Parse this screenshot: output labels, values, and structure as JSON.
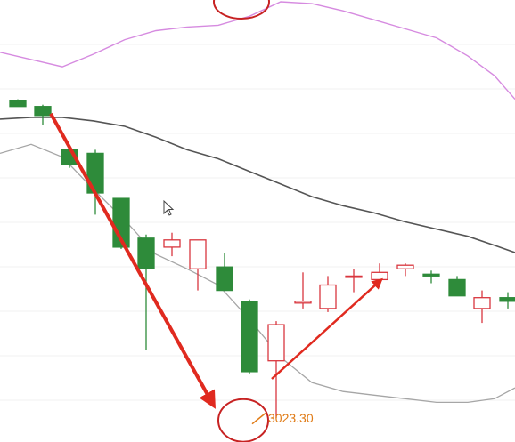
{
  "chart_data": {
    "type": "candlestick",
    "title": "",
    "xlabel": "",
    "ylabel": "",
    "grid": true,
    "price_range": [
      3010,
      3255
    ],
    "low_annotation": {
      "text": "3023.30",
      "value": 3023.3,
      "color": "#e07b16"
    },
    "colors": {
      "up": "#d9363e",
      "down": "#2e8b3a",
      "upper_band": "#d68be0",
      "middle_band": "#555555",
      "lower_band": "#a6a6a6",
      "arrow": "#e02a1f",
      "circle": "#c72222",
      "grid": "#f2f2f2"
    },
    "candles": [
      {
        "open": 3199.0,
        "close": 3196.0,
        "high": 3200.0,
        "low": 3196.0
      },
      {
        "open": 3196.0,
        "close": 3191.0,
        "high": 3197.0,
        "low": 3186.0
      },
      {
        "open": 3172.0,
        "close": 3164.0,
        "high": 3174.0,
        "low": 3162.0
      },
      {
        "open": 3170.0,
        "close": 3148.0,
        "high": 3172.0,
        "low": 3136.0
      },
      {
        "open": 3145.0,
        "close": 3118.0,
        "high": 3145.0,
        "low": 3117.0
      },
      {
        "open": 3123.0,
        "close": 3106.0,
        "high": 3125.0,
        "low": 3061.0
      },
      {
        "open": 3118.0,
        "close": 3122.0,
        "high": 3126.0,
        "low": 3113.0
      },
      {
        "open": 3106.0,
        "close": 3122.0,
        "high": 3122.0,
        "low": 3094.0
      },
      {
        "open": 3107.0,
        "close": 3094.0,
        "high": 3115.0,
        "low": 3094.0
      },
      {
        "open": 3088.0,
        "close": 3049.0,
        "high": 3089.0,
        "low": 3048.0
      },
      {
        "open": 3055.0,
        "close": 3075.0,
        "high": 3077.0,
        "low": 3023.3
      },
      {
        "open": 3087.0,
        "close": 3088.0,
        "high": 3104.0,
        "low": 3084.0
      },
      {
        "open": 3084.0,
        "close": 3097.0,
        "high": 3102.0,
        "low": 3082.0
      },
      {
        "open": 3102.0,
        "close": 3102.0,
        "high": 3106.0,
        "low": 3093.0
      },
      {
        "open": 3100.0,
        "close": 3104.0,
        "high": 3109.0,
        "low": 3098.0
      },
      {
        "open": 3106.0,
        "close": 3108.0,
        "high": 3109.0,
        "low": 3102.0
      },
      {
        "open": 3103.0,
        "close": 3102.0,
        "high": 3105.0,
        "low": 3098.0
      },
      {
        "open": 3100.0,
        "close": 3091.0,
        "high": 3102.0,
        "low": 3091.0
      },
      {
        "open": 3084.0,
        "close": 3090.0,
        "high": 3094.0,
        "low": 3076.0
      },
      {
        "open": 3090.0,
        "close": 3088.0,
        "high": 3093.0,
        "low": 3084.0
      }
    ],
    "upper_band": [
      3226,
      3222,
      3218,
      3225,
      3233,
      3238,
      3240,
      3241,
      3246,
      3254,
      3253,
      3249,
      3244,
      3239,
      3234,
      3224,
      3213,
      3200
    ],
    "middle_band": [
      3189,
      3190,
      3190,
      3188,
      3185,
      3179,
      3172,
      3167,
      3160,
      3153,
      3146,
      3141,
      3137,
      3132,
      3128,
      3124,
      3119,
      3115
    ],
    "lower_band": [
      3170,
      3175,
      3168,
      3150,
      3133,
      3114,
      3106,
      3097,
      3078,
      3057,
      3043,
      3038,
      3036,
      3034,
      3032,
      3032,
      3034,
      3040
    ]
  }
}
